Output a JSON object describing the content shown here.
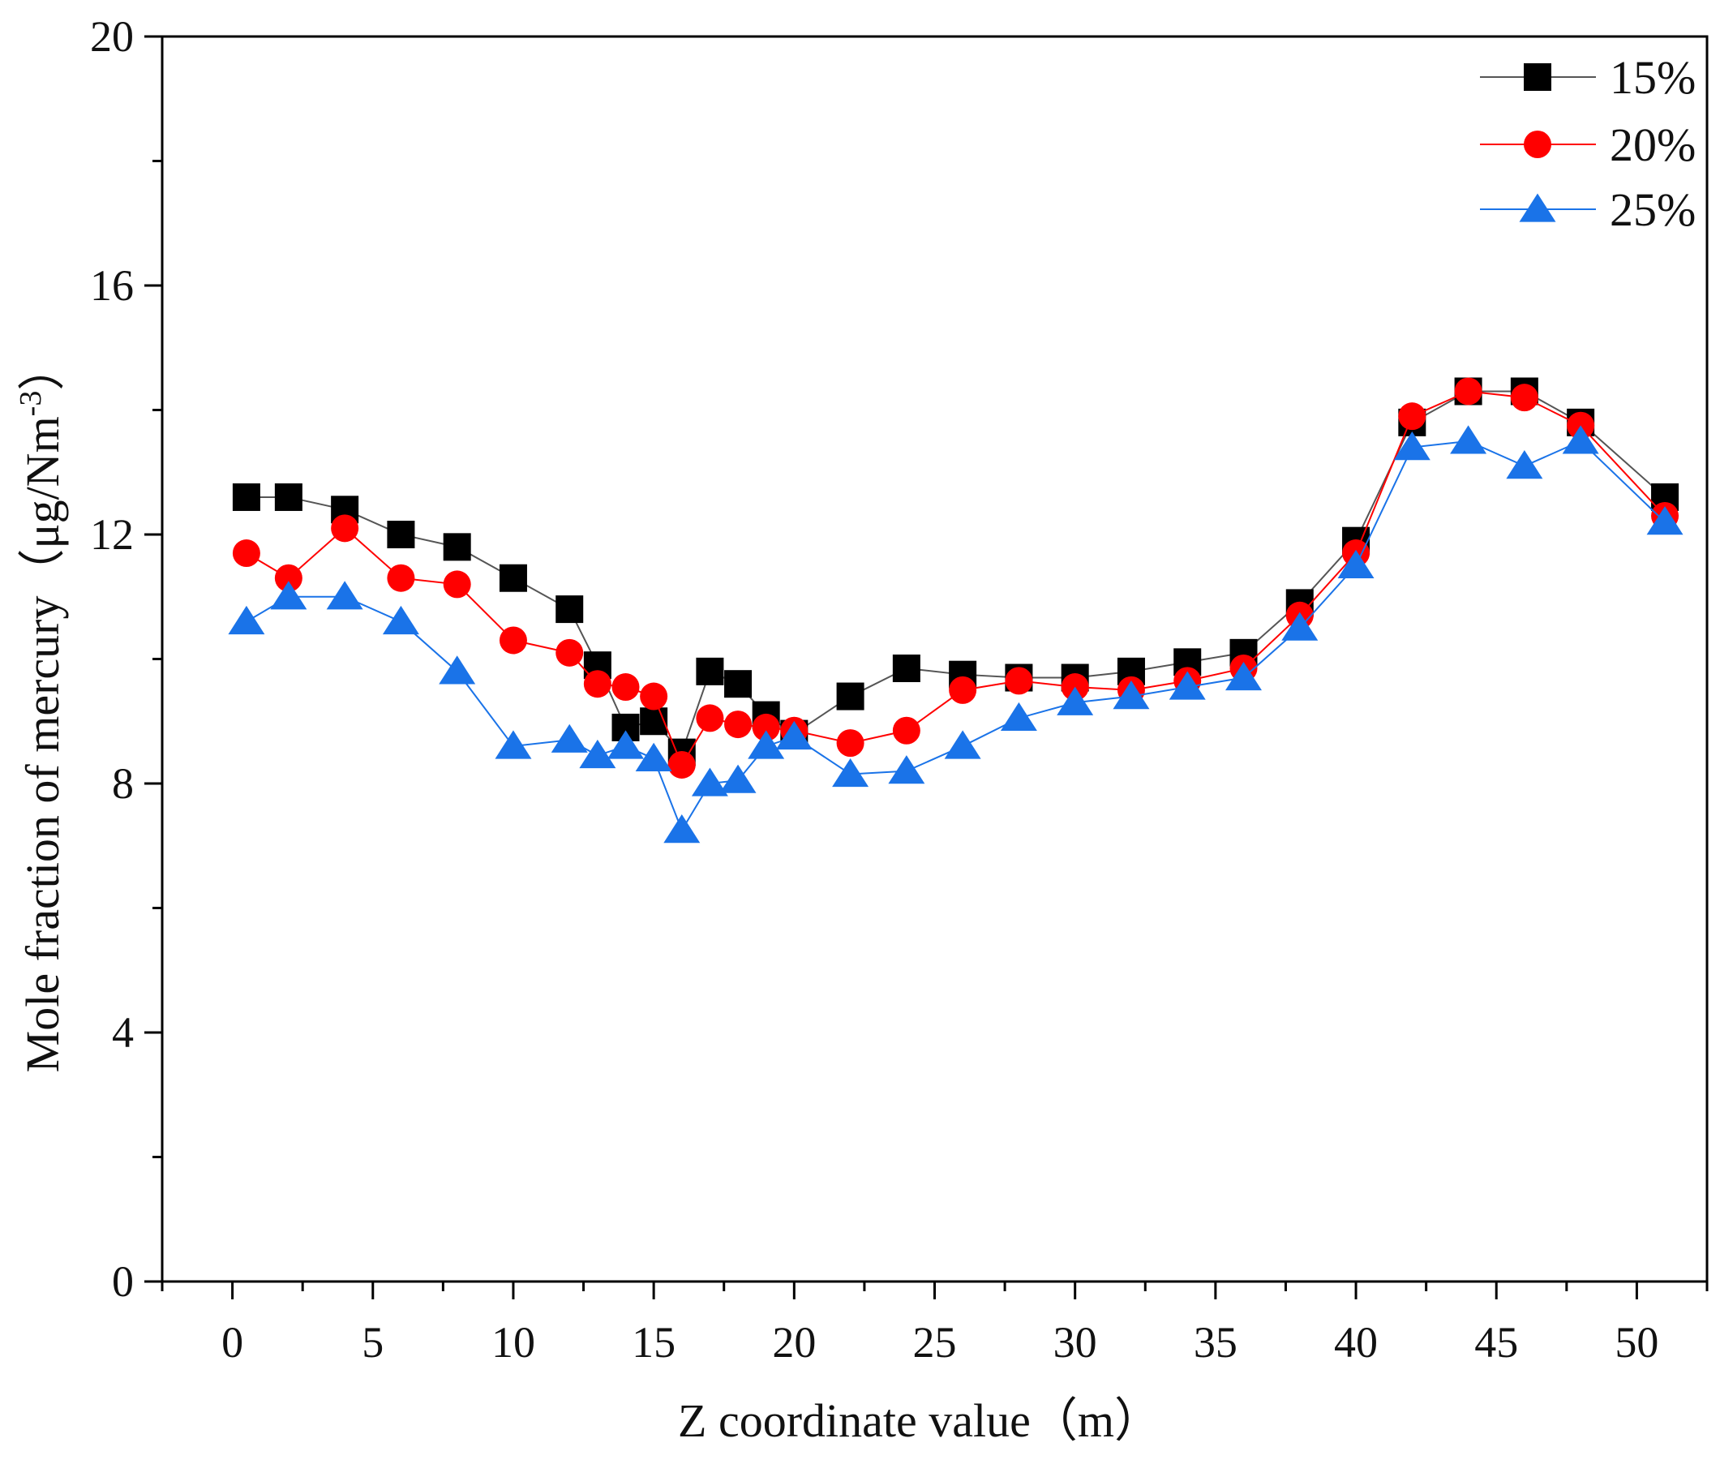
{
  "chart_data": {
    "type": "line",
    "title": "",
    "xlabel": "Z coordinate value（m）",
    "ylabel_main": "Mole fraction of mercury（μg/Nm",
    "ylabel_sup": "-3",
    "ylabel_tail": "）",
    "xlim": [
      -2.5,
      52.5
    ],
    "ylim": [
      0,
      20
    ],
    "xticks": [
      0,
      5,
      10,
      15,
      20,
      25,
      30,
      35,
      40,
      45,
      50
    ],
    "xtick_labels": [
      "0",
      "5",
      "10",
      "15",
      "20",
      "25",
      "30",
      "35",
      "40",
      "45",
      "50"
    ],
    "yticks": [
      0,
      4,
      8,
      12,
      16,
      20
    ],
    "ytick_labels": [
      "0",
      "4",
      "8",
      "12",
      "16",
      "20"
    ],
    "legend_position": "top-right",
    "series": [
      {
        "name": "15%",
        "marker": "square",
        "color": "#000000",
        "line_color": "#555555",
        "x": [
          0.5,
          2,
          4,
          6,
          8,
          10,
          12,
          13,
          14,
          15,
          16,
          17,
          18,
          19,
          20,
          22,
          24,
          26,
          28,
          30,
          32,
          34,
          36,
          38,
          40,
          42,
          44,
          46,
          48,
          51
        ],
        "y": [
          12.6,
          12.6,
          12.4,
          12.0,
          11.8,
          11.3,
          10.8,
          9.9,
          8.9,
          9.0,
          8.5,
          9.8,
          9.6,
          9.1,
          8.8,
          9.4,
          9.85,
          9.75,
          9.7,
          9.7,
          9.8,
          9.95,
          10.1,
          10.9,
          11.9,
          13.8,
          14.3,
          14.3,
          13.8,
          12.6
        ]
      },
      {
        "name": "20%",
        "marker": "circle",
        "color": "#ff0000",
        "line_color": "#ff0000",
        "x": [
          0.5,
          2,
          4,
          6,
          8,
          10,
          12,
          13,
          14,
          15,
          16,
          17,
          18,
          19,
          20,
          22,
          24,
          26,
          28,
          30,
          32,
          34,
          36,
          38,
          40,
          42,
          44,
          46,
          48,
          51
        ],
        "y": [
          11.7,
          11.3,
          12.1,
          11.3,
          11.2,
          10.3,
          10.1,
          9.6,
          9.55,
          9.4,
          8.3,
          9.05,
          8.95,
          8.9,
          8.85,
          8.65,
          8.85,
          9.5,
          9.65,
          9.55,
          9.5,
          9.65,
          9.85,
          10.7,
          11.7,
          13.9,
          14.3,
          14.2,
          13.75,
          12.3
        ]
      },
      {
        "name": "25%",
        "marker": "triangle",
        "color": "#1a73e8",
        "line_color": "#1a73e8",
        "x": [
          0.5,
          2,
          4,
          6,
          8,
          10,
          12,
          13,
          14,
          15,
          16,
          17,
          18,
          19,
          20,
          22,
          24,
          26,
          28,
          30,
          32,
          34,
          36,
          38,
          40,
          42,
          44,
          46,
          48,
          51
        ],
        "y": [
          10.6,
          11.0,
          11.0,
          10.6,
          9.8,
          8.6,
          8.7,
          8.45,
          8.6,
          8.4,
          7.25,
          8.0,
          8.05,
          8.6,
          8.75,
          8.15,
          8.2,
          8.6,
          9.05,
          9.3,
          9.4,
          9.55,
          9.7,
          10.5,
          11.5,
          13.4,
          13.5,
          13.1,
          13.5,
          12.2
        ]
      }
    ]
  }
}
